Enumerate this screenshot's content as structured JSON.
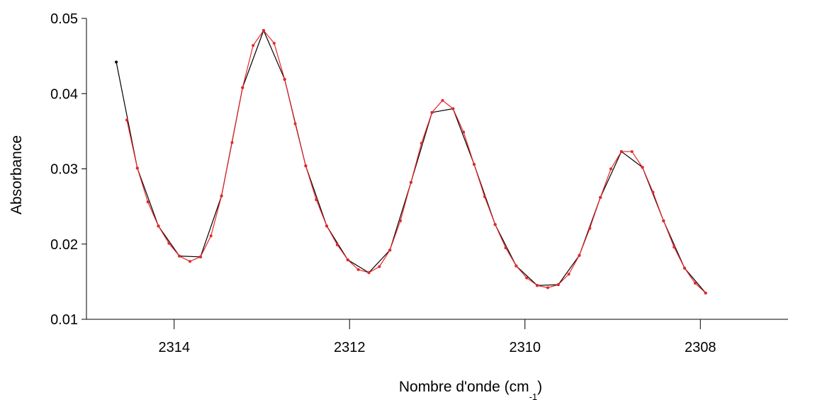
{
  "chart_data": {
    "type": "line",
    "title": "",
    "xlabel": "Nombre d'onde (cm",
    "xlabel_superscript": "-1",
    "xlabel_close": ")",
    "ylabel": "Absorbance",
    "xlim": [
      2315.0,
      2307.0
    ],
    "ylim": [
      0.01,
      0.05
    ],
    "x_reversed": true,
    "x_ticks": [
      2314,
      2312,
      2310,
      2308
    ],
    "x_tick_labels": [
      "2314",
      "2312",
      "2310",
      "2308"
    ],
    "y_ticks": [
      0.01,
      0.02,
      0.03,
      0.04,
      0.05
    ],
    "y_tick_labels": [
      "0.01",
      "0.02",
      "0.03",
      "0.04",
      "0.05"
    ],
    "grid": false,
    "legend": "none",
    "series": [
      {
        "color": "#000000",
        "marker": "dot",
        "points": [
          [
            2314.66,
            0.0442
          ],
          [
            2314.42,
            0.0301
          ],
          [
            2314.18,
            0.0224
          ],
          [
            2313.94,
            0.0184
          ],
          [
            2313.7,
            0.0183
          ],
          [
            2313.46,
            0.0264
          ],
          [
            2313.22,
            0.0408
          ],
          [
            2312.98,
            0.0484
          ],
          [
            2312.74,
            0.0419
          ],
          [
            2312.5,
            0.0304
          ],
          [
            2312.26,
            0.0224
          ],
          [
            2312.02,
            0.0179
          ],
          [
            2311.78,
            0.0162
          ],
          [
            2311.54,
            0.0192
          ],
          [
            2311.3,
            0.0282
          ],
          [
            2311.06,
            0.0375
          ],
          [
            2310.82,
            0.038
          ],
          [
            2310.58,
            0.0306
          ],
          [
            2310.34,
            0.0226
          ],
          [
            2310.1,
            0.0171
          ],
          [
            2309.86,
            0.0145
          ],
          [
            2309.62,
            0.0146
          ],
          [
            2309.38,
            0.0185
          ],
          [
            2309.14,
            0.0262
          ],
          [
            2308.9,
            0.0323
          ],
          [
            2308.66,
            0.0302
          ],
          [
            2308.42,
            0.0231
          ],
          [
            2308.18,
            0.0168
          ],
          [
            2307.94,
            0.0135
          ]
        ]
      },
      {
        "color": "#e8262a",
        "marker": "dot",
        "points": [
          [
            2314.54,
            0.0365
          ],
          [
            2314.42,
            0.0301
          ],
          [
            2314.3,
            0.0256
          ],
          [
            2314.18,
            0.0224
          ],
          [
            2314.06,
            0.0201
          ],
          [
            2313.94,
            0.0184
          ],
          [
            2313.82,
            0.0177
          ],
          [
            2313.7,
            0.0183
          ],
          [
            2313.58,
            0.0211
          ],
          [
            2313.46,
            0.0264
          ],
          [
            2313.34,
            0.0335
          ],
          [
            2313.22,
            0.0408
          ],
          [
            2313.1,
            0.0464
          ],
          [
            2312.98,
            0.0484
          ],
          [
            2312.86,
            0.0467
          ],
          [
            2312.74,
            0.0419
          ],
          [
            2312.62,
            0.036
          ],
          [
            2312.5,
            0.0304
          ],
          [
            2312.38,
            0.0259
          ],
          [
            2312.26,
            0.0224
          ],
          [
            2312.14,
            0.0199
          ],
          [
            2312.02,
            0.0179
          ],
          [
            2311.9,
            0.0166
          ],
          [
            2311.78,
            0.0162
          ],
          [
            2311.66,
            0.017
          ],
          [
            2311.54,
            0.0192
          ],
          [
            2311.42,
            0.0231
          ],
          [
            2311.3,
            0.0282
          ],
          [
            2311.18,
            0.0334
          ],
          [
            2311.06,
            0.0375
          ],
          [
            2310.94,
            0.0391
          ],
          [
            2310.82,
            0.038
          ],
          [
            2310.7,
            0.0349
          ],
          [
            2310.58,
            0.0306
          ],
          [
            2310.46,
            0.0263
          ],
          [
            2310.34,
            0.0226
          ],
          [
            2310.22,
            0.0195
          ],
          [
            2310.1,
            0.0171
          ],
          [
            2309.98,
            0.0155
          ],
          [
            2309.86,
            0.0145
          ],
          [
            2309.74,
            0.0142
          ],
          [
            2309.62,
            0.0146
          ],
          [
            2309.5,
            0.016
          ],
          [
            2309.38,
            0.0185
          ],
          [
            2309.26,
            0.0221
          ],
          [
            2309.14,
            0.0262
          ],
          [
            2309.02,
            0.03
          ],
          [
            2308.9,
            0.0323
          ],
          [
            2308.78,
            0.0323
          ],
          [
            2308.66,
            0.0302
          ],
          [
            2308.54,
            0.0269
          ],
          [
            2308.42,
            0.0231
          ],
          [
            2308.3,
            0.0196
          ],
          [
            2308.18,
            0.0168
          ],
          [
            2308.06,
            0.0148
          ],
          [
            2307.94,
            0.0135
          ]
        ]
      }
    ]
  }
}
